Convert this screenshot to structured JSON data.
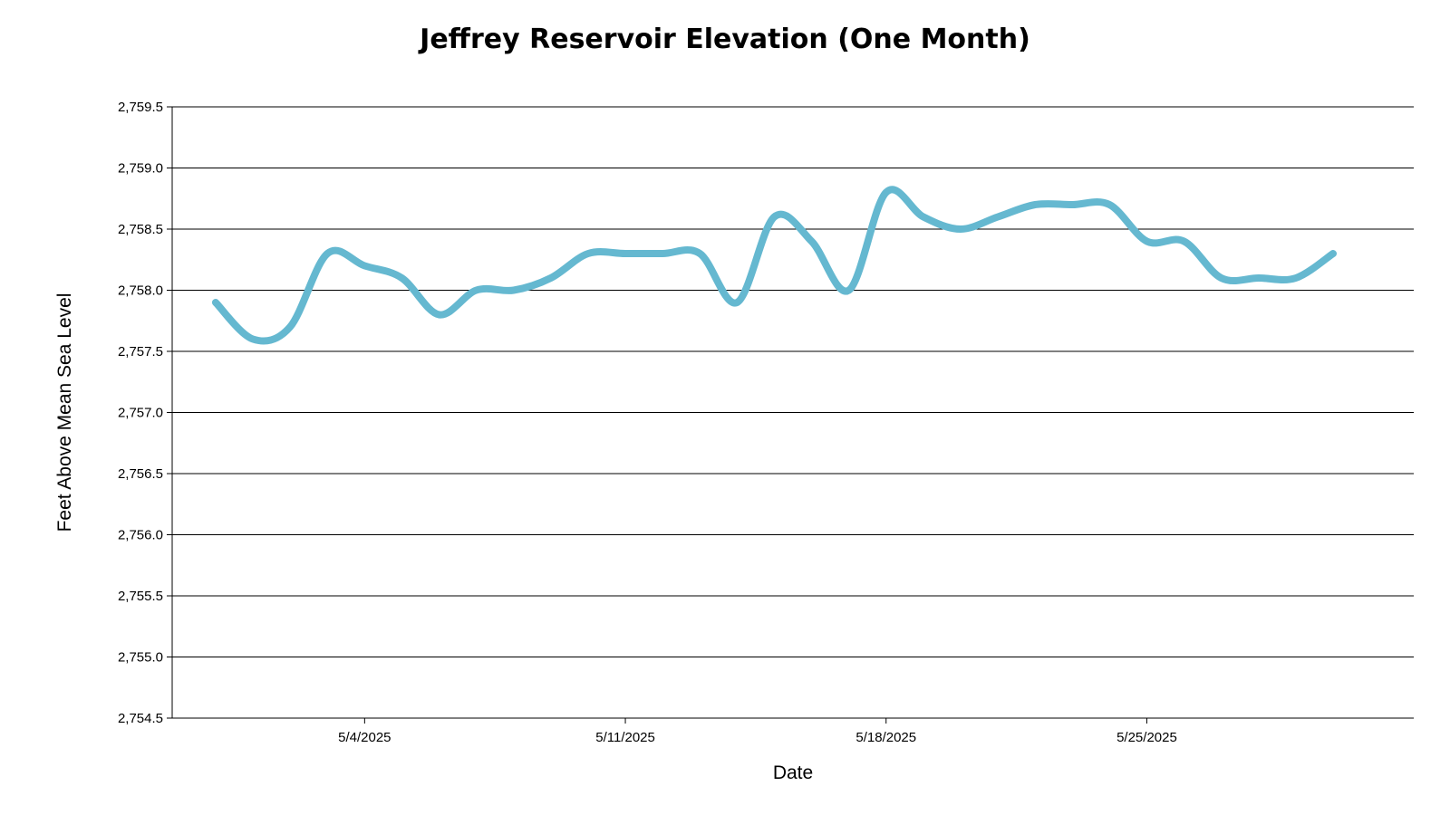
{
  "chart_data": {
    "type": "line",
    "title": "Jeffrey Reservoir Elevation (One Month)",
    "xlabel": "Date",
    "ylabel": "Feet Above Mean Sea Level",
    "ylim": [
      2754.5,
      2759.5
    ],
    "yticks": [
      2754.5,
      2755.0,
      2755.5,
      2756.0,
      2756.5,
      2757.0,
      2757.5,
      2758.0,
      2758.5,
      2759.0,
      2759.5
    ],
    "ytick_labels": [
      "2,754.5",
      "2,755.0",
      "2,755.5",
      "2,756.0",
      "2,756.5",
      "2,757.0",
      "2,757.5",
      "2,758.0",
      "2,758.5",
      "2,759.0",
      "2,759.5"
    ],
    "xlim": [
      "2025-04-28T20:00",
      "2025-06-01T04:00"
    ],
    "xticks": [
      "2025-05-04",
      "2025-05-11",
      "2025-05-18",
      "2025-05-25"
    ],
    "xtick_labels": [
      "5/4/2025",
      "5/11/2025",
      "5/18/2025",
      "5/25/2025"
    ],
    "grid": "horizontal",
    "line_color": "#65b8d0",
    "series": [
      {
        "x": [
          "2025-04-30",
          "2025-05-01",
          "2025-05-02",
          "2025-05-03",
          "2025-05-04",
          "2025-05-05",
          "2025-05-06",
          "2025-05-07",
          "2025-05-08",
          "2025-05-09",
          "2025-05-10",
          "2025-05-11",
          "2025-05-12",
          "2025-05-13",
          "2025-05-14",
          "2025-05-15",
          "2025-05-16",
          "2025-05-17",
          "2025-05-18",
          "2025-05-19",
          "2025-05-20",
          "2025-05-21",
          "2025-05-22",
          "2025-05-23",
          "2025-05-24",
          "2025-05-25",
          "2025-05-26",
          "2025-05-27",
          "2025-05-28",
          "2025-05-29",
          "2025-05-30"
        ],
        "values": [
          2757.9,
          2757.6,
          2757.7,
          2758.3,
          2758.2,
          2758.1,
          2757.8,
          2758.0,
          2758.0,
          2758.1,
          2758.3,
          2758.3,
          2758.3,
          2758.3,
          2757.9,
          2758.6,
          2758.4,
          2758.0,
          2758.8,
          2758.6,
          2758.5,
          2758.6,
          2758.7,
          2758.7,
          2758.7,
          2758.4,
          2758.4,
          2758.1,
          2758.1,
          2758.1,
          2758.3
        ]
      }
    ]
  }
}
